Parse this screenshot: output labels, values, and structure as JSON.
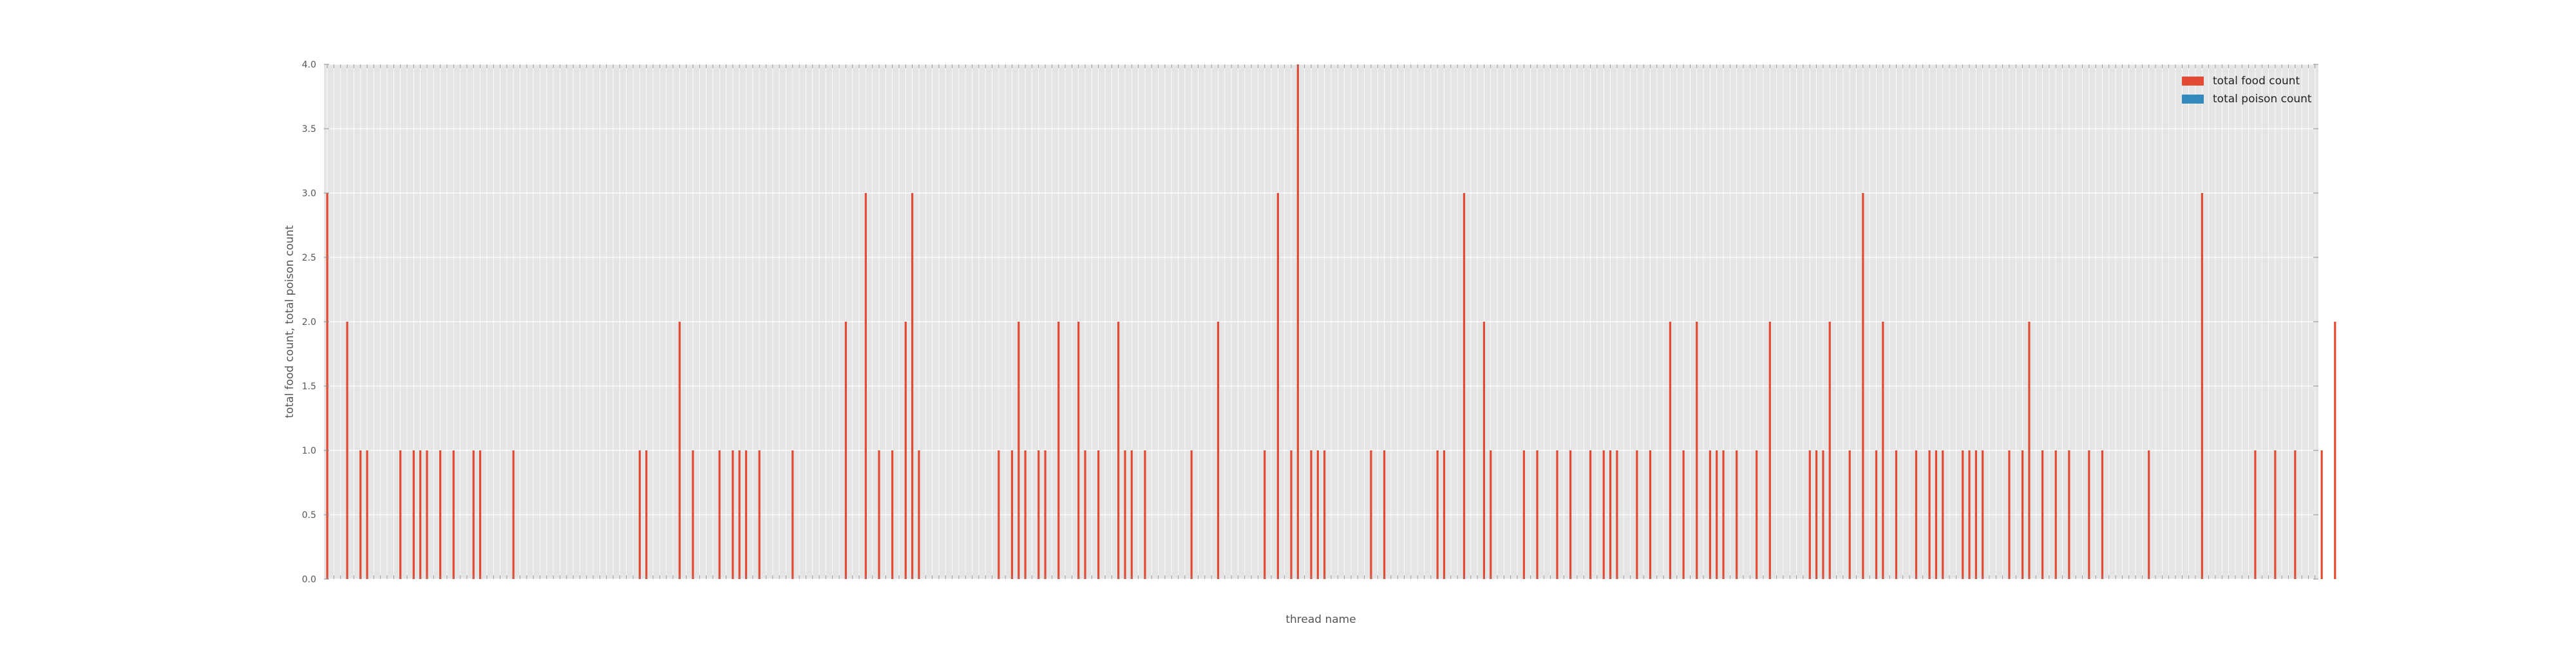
{
  "chart_data": {
    "type": "bar",
    "xlabel": "thread name",
    "ylabel": "total food count, total poison count",
    "ylim": [
      0,
      4
    ],
    "yticks": [
      "0.0",
      "0.5",
      "1.0",
      "1.5",
      "2.0",
      "2.5",
      "3.0",
      "3.5",
      "4.0"
    ],
    "grid": true,
    "legend_position": "top-right",
    "category_count": 300,
    "series": [
      {
        "name": "total food count",
        "color": "#E24A33",
        "values": [
          3,
          0,
          0,
          2,
          0,
          1,
          1,
          0,
          0,
          0,
          0,
          1,
          0,
          1,
          1,
          1,
          0,
          1,
          0,
          1,
          0,
          0,
          1,
          1,
          0,
          0,
          0,
          0,
          1,
          0,
          0,
          0,
          0,
          0,
          0,
          0,
          0,
          0,
          0,
          0,
          0,
          0,
          0,
          0,
          0,
          0,
          0,
          1,
          1,
          0,
          0,
          0,
          0,
          2,
          0,
          1,
          0,
          0,
          0,
          1,
          0,
          1,
          1,
          1,
          0,
          1,
          0,
          0,
          0,
          0,
          1,
          0,
          0,
          0,
          0,
          0,
          0,
          0,
          2,
          0,
          0,
          3,
          0,
          1,
          0,
          1,
          0,
          2,
          3,
          1,
          0,
          0,
          0,
          0,
          0,
          0,
          0,
          0,
          0,
          0,
          0,
          1,
          0,
          1,
          2,
          1,
          0,
          1,
          1,
          0,
          2,
          0,
          0,
          2,
          1,
          0,
          1,
          0,
          0,
          2,
          1,
          1,
          0,
          1,
          0,
          0,
          0,
          0,
          0,
          0,
          1,
          0,
          0,
          0,
          2,
          0,
          0,
          0,
          0,
          0,
          0,
          1,
          0,
          3,
          0,
          1,
          4,
          0,
          1,
          1,
          1,
          0,
          0,
          0,
          0,
          0,
          0,
          1,
          0,
          1,
          0,
          0,
          0,
          0,
          0,
          0,
          0,
          1,
          1,
          0,
          0,
          3,
          0,
          0,
          2,
          1,
          0,
          0,
          0,
          0,
          1,
          0,
          1,
          0,
          0,
          1,
          0,
          1,
          0,
          0,
          1,
          0,
          1,
          1,
          1,
          0,
          0,
          1,
          0,
          1,
          0,
          0,
          2,
          0,
          1,
          0,
          2,
          0,
          1,
          1,
          1,
          0,
          1,
          0,
          0,
          1,
          0,
          2,
          0,
          0,
          0,
          0,
          0,
          1,
          1,
          1,
          2,
          0,
          0,
          1,
          0,
          3,
          0,
          1,
          2,
          0,
          1,
          0,
          0,
          1,
          0,
          1,
          1,
          1,
          0,
          0,
          1,
          1,
          1,
          1,
          0,
          0,
          0,
          1,
          0,
          1,
          2,
          0,
          1,
          0,
          1,
          0,
          1,
          0,
          0,
          1,
          0,
          1,
          0,
          0,
          0,
          0,
          0,
          0,
          1,
          0,
          0,
          0,
          0,
          0,
          0,
          0,
          3,
          0,
          0,
          0,
          0,
          0,
          0,
          0,
          1,
          0,
          0,
          1,
          0,
          0,
          1,
          0,
          0,
          0,
          1,
          0,
          2,
          0,
          0,
          0,
          0
        ]
      },
      {
        "name": "total poison count",
        "color": "#348ABD",
        "values": []
      }
    ]
  }
}
